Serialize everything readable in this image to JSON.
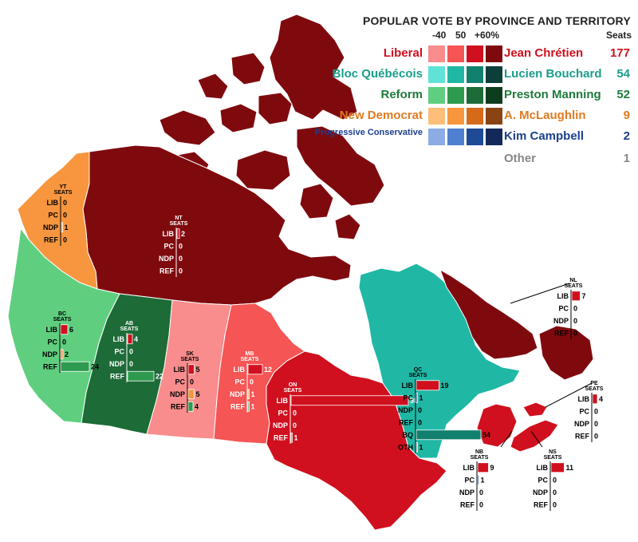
{
  "legend": {
    "title": "POPULAR VOTE BY PROVINCE AND TERRITORY",
    "scale": [
      "-40",
      "50",
      "+60%"
    ],
    "seats_header": "Seats",
    "parties": [
      {
        "party": "Liberal",
        "leader": "Jean Chrétien",
        "seats": "177",
        "color": "#d0101e",
        "shades": [
          "#f98c8c",
          "#f55555",
          "#d0101e",
          "#7f0a0e"
        ]
      },
      {
        "party": "Bloc Québécois",
        "leader": "Lucien Bouchard",
        "seats": "54",
        "color": "#1a9e8a",
        "shades": [
          "#5fe3d6",
          "#20b8a5",
          "#12806f",
          "#0c3f39"
        ]
      },
      {
        "party": "Reform",
        "leader": "Preston Manning",
        "seats": "52",
        "color": "#1e7a3c",
        "shades": [
          "#5fcf7f",
          "#2e9a4f",
          "#1d6b37",
          "#0e3d1d"
        ]
      },
      {
        "party": "New Democrat",
        "leader": "A. McLaughlin",
        "seats": "9",
        "color": "#e07a20",
        "shades": [
          "#fdbe79",
          "#f7963e",
          "#d56a1a",
          "#8a4414"
        ]
      },
      {
        "party": "Progressive Conservative",
        "leader": "Kim Campbell",
        "seats": "2",
        "color": "#1c3f8c",
        "shades": [
          "#8cade3",
          "#4f7fcf",
          "#1e4a96",
          "#13295a"
        ]
      },
      {
        "party": "",
        "leader": "Other",
        "seats": "1",
        "color": "#888888",
        "shades": []
      }
    ]
  },
  "regions": [
    {
      "id": "YT",
      "header": [
        "YT",
        "SEATS"
      ],
      "rows": [
        [
          "LIB",
          "0"
        ],
        [
          "PC",
          "0"
        ],
        [
          "NDP",
          "1"
        ],
        [
          "REF",
          "0"
        ]
      ],
      "color": "#f7963e"
    },
    {
      "id": "NT",
      "header": [
        "NT",
        "SEATS"
      ],
      "rows": [
        [
          "LIB",
          "2"
        ],
        [
          "PC",
          "0"
        ],
        [
          "NDP",
          "0"
        ],
        [
          "REF",
          "0"
        ]
      ],
      "color": "#7f0a0e"
    },
    {
      "id": "BC",
      "header": [
        "BC",
        "SEATS"
      ],
      "rows": [
        [
          "LIB",
          "6"
        ],
        [
          "PC",
          "0"
        ],
        [
          "NDP",
          "2"
        ],
        [
          "REF",
          "24"
        ]
      ],
      "color": "#5fcf7f"
    },
    {
      "id": "AB",
      "header": [
        "AB",
        "SEATS"
      ],
      "rows": [
        [
          "LIB",
          "4"
        ],
        [
          "PC",
          "0"
        ],
        [
          "NDP",
          "0"
        ],
        [
          "REF",
          "22"
        ]
      ],
      "color": "#1d6b37"
    },
    {
      "id": "SK",
      "header": [
        "SK",
        "SEATS"
      ],
      "rows": [
        [
          "LIB",
          "5"
        ],
        [
          "PC",
          "0"
        ],
        [
          "NDP",
          "5"
        ],
        [
          "REF",
          "4"
        ]
      ],
      "color": "#f98c8c"
    },
    {
      "id": "MB",
      "header": [
        "MB",
        "SEATS"
      ],
      "rows": [
        [
          "LIB",
          "12"
        ],
        [
          "PC",
          "0"
        ],
        [
          "NDP",
          "1"
        ],
        [
          "REF",
          "1"
        ]
      ],
      "color": "#f55555"
    },
    {
      "id": "ON",
      "header": [
        "ON",
        "SEATS"
      ],
      "rows": [
        [
          "LIB",
          "98"
        ],
        [
          "PC",
          "0"
        ],
        [
          "NDP",
          "0"
        ],
        [
          "REF",
          "1"
        ]
      ],
      "color": "#d0101e"
    },
    {
      "id": "QC",
      "header": [
        "QC",
        "SEATS"
      ],
      "rows": [
        [
          "LIB",
          "19"
        ],
        [
          "PC",
          "1"
        ],
        [
          "NDP",
          "0"
        ],
        [
          "REF",
          "0"
        ],
        [
          "BQ",
          "54"
        ],
        [
          "OTH",
          "1"
        ]
      ],
      "color": "#20b8a5"
    },
    {
      "id": "NL",
      "header": [
        "NL",
        "SEATS"
      ],
      "rows": [
        [
          "LIB",
          "7"
        ],
        [
          "PC",
          "0"
        ],
        [
          "NDP",
          "0"
        ],
        [
          "REF",
          "0"
        ]
      ],
      "color": "#7f0a0e"
    },
    {
      "id": "PE",
      "header": [
        "PE",
        "SEATS"
      ],
      "rows": [
        [
          "LIB",
          "4"
        ],
        [
          "PC",
          "0"
        ],
        [
          "NDP",
          "0"
        ],
        [
          "REF",
          "0"
        ]
      ],
      "color": "#d0101e"
    },
    {
      "id": "NB",
      "header": [
        "NB",
        "SEATS"
      ],
      "rows": [
        [
          "LIB",
          "9"
        ],
        [
          "PC",
          "1"
        ],
        [
          "NDP",
          "0"
        ],
        [
          "REF",
          "0"
        ]
      ],
      "color": "#d0101e"
    },
    {
      "id": "NS",
      "header": [
        "NS",
        "SEATS"
      ],
      "rows": [
        [
          "LIB",
          "11"
        ],
        [
          "PC",
          "0"
        ],
        [
          "NDP",
          "0"
        ],
        [
          "REF",
          "0"
        ]
      ],
      "color": "#d0101e"
    }
  ],
  "bar_colors": {
    "LIB": "#d0101e",
    "PC": "#1c3f8c",
    "NDP": "#f7963e",
    "REF": "#2e9a4f",
    "BQ": "#12806f",
    "OTH": "#888888"
  }
}
